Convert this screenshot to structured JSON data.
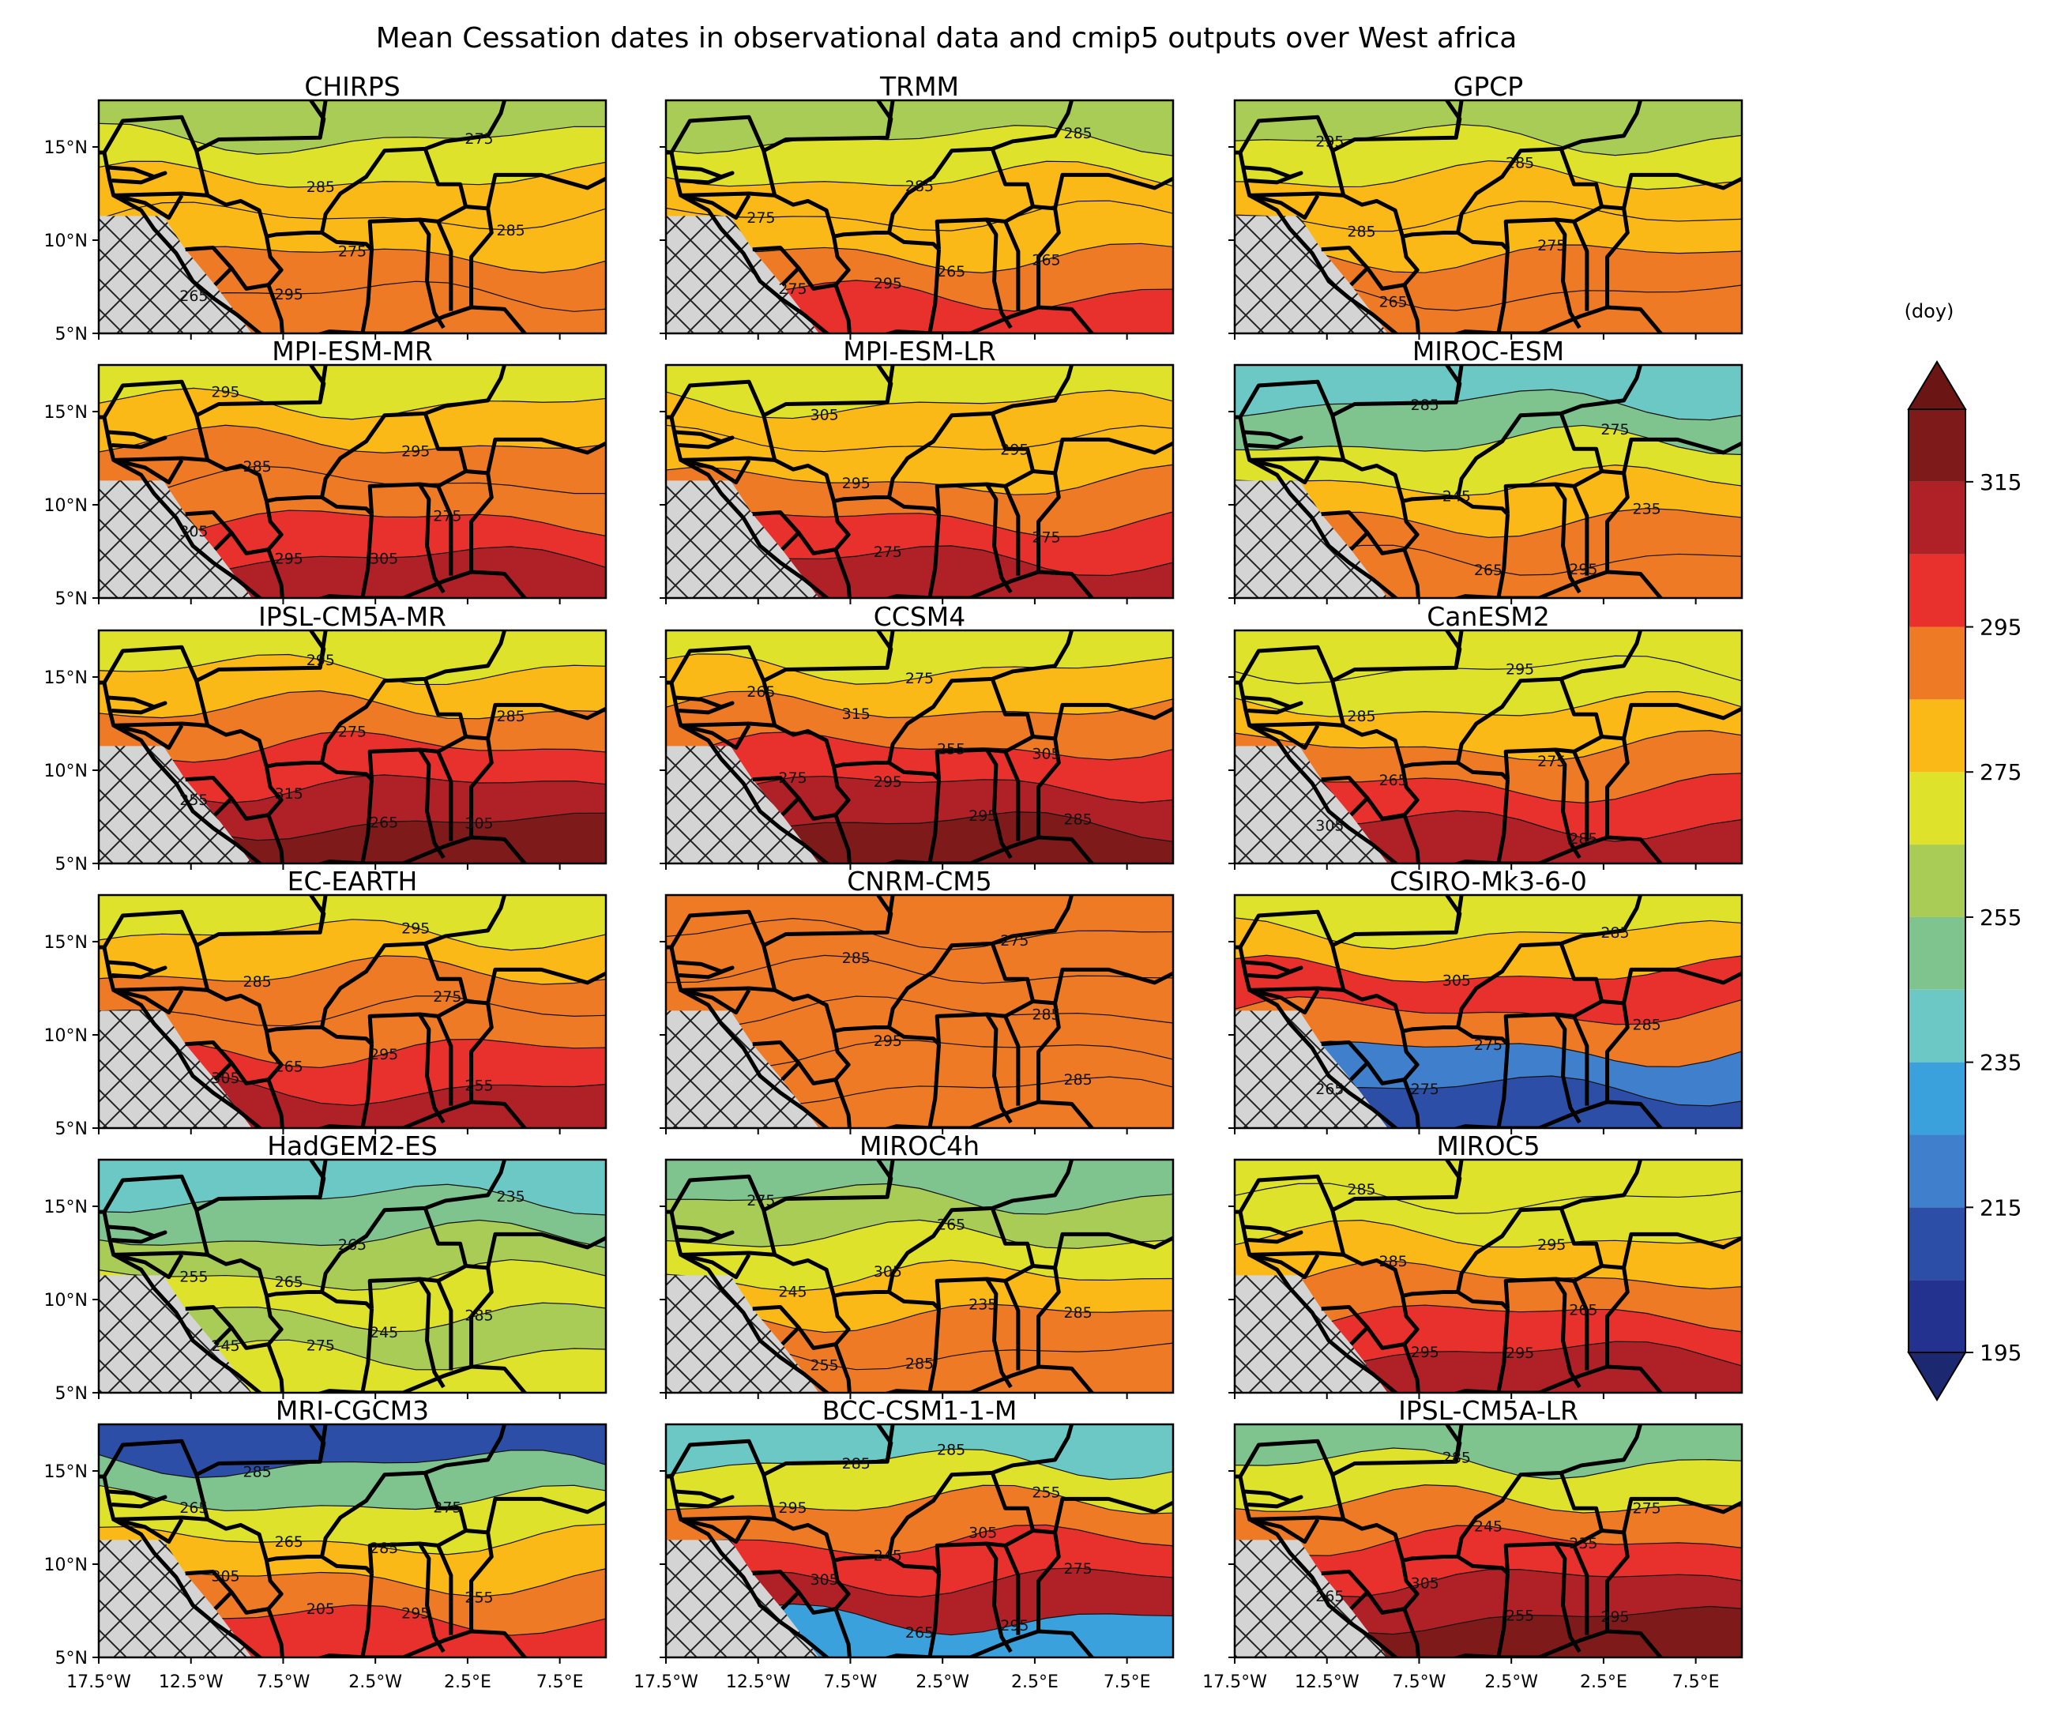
{
  "figure": {
    "title": "Mean Cessation dates in observational data and cmip5 outputs over West africa"
  },
  "panels": [
    {
      "name": "CHIRPS"
    },
    {
      "name": "TRMM"
    },
    {
      "name": "GPCP"
    },
    {
      "name": "MPI-ESM-MR"
    },
    {
      "name": "MPI-ESM-LR"
    },
    {
      "name": "MIROC-ESM"
    },
    {
      "name": "IPSL-CM5A-MR"
    },
    {
      "name": "CCSM4"
    },
    {
      "name": "CanESM2"
    },
    {
      "name": "EC-EARTH"
    },
    {
      "name": "CNRM-CM5"
    },
    {
      "name": "CSIRO-Mk3-6-0"
    },
    {
      "name": "HadGEM2-ES"
    },
    {
      "name": "MIROC4h"
    },
    {
      "name": "MIROC5"
    },
    {
      "name": "MRI-CGCM3"
    },
    {
      "name": "BCC-CSM1-1-M"
    },
    {
      "name": "IPSL-CM5A-LR"
    }
  ],
  "axes": {
    "lat_ticks": [
      "5°N",
      "10°N",
      "15°N"
    ],
    "lat_values": [
      5,
      10,
      15
    ],
    "lon_ticks": [
      "17.5°W",
      "12.5°W",
      "7.5°W",
      "2.5°W",
      "2.5°E",
      "7.5°E"
    ],
    "lon_values": [
      -17.5,
      -12.5,
      -7.5,
      -2.5,
      2.5,
      7.5
    ],
    "lat_range": [
      5,
      17.5
    ],
    "lon_range": [
      -17.5,
      10
    ]
  },
  "colorbar": {
    "unit_label": "(doy)",
    "tick_labels": [
      "195",
      "215",
      "235",
      "255",
      "275",
      "295",
      "315"
    ],
    "tick_values": [
      195,
      215,
      235,
      255,
      275,
      295,
      315
    ],
    "range": [
      195,
      315
    ],
    "step": 10,
    "extend": "both",
    "colors": [
      "#23318f",
      "#2d4ea6",
      "#3f7fcb",
      "#3aa1dc",
      "#6cc8c4",
      "#7fc48f",
      "#a8cc55",
      "#dfe22a",
      "#fbb917",
      "#ef7a25",
      "#e8312c",
      "#b02127",
      "#7f1a1a"
    ],
    "under_color": "#1c2870",
    "over_color": "#6b1515"
  },
  "mask": {
    "color": "#d4d4d4",
    "pattern": "crosshatch"
  },
  "contour_labels": [
    [
      "265",
      "275",
      "285",
      "285",
      "275",
      "295"
    ],
    [
      "275",
      "265",
      "275",
      "285",
      "285",
      "295",
      "265"
    ],
    [
      "265",
      "275",
      "285",
      "285",
      "295"
    ],
    [
      "295",
      "275",
      "285",
      "295",
      "295",
      "305",
      "305"
    ],
    [
      "275",
      "275",
      "295",
      "295",
      "305"
    ],
    [
      "265",
      "235",
      "245",
      "275",
      "285",
      "295"
    ],
    [
      "265",
      "255",
      "275",
      "285",
      "295",
      "305",
      "315"
    ],
    [
      "295",
      "275",
      "255",
      "265",
      "275",
      "285",
      "295",
      "305",
      "315"
    ],
    [
      "285",
      "265",
      "275",
      "285",
      "295",
      "305"
    ],
    [
      "255",
      "265",
      "275",
      "285",
      "295",
      "305",
      "295"
    ],
    [
      "285",
      "295",
      "285",
      "285",
      "275"
    ],
    [
      "265",
      "275",
      "285",
      "305",
      "285",
      "275"
    ],
    [
      "245",
      "245",
      "255",
      "265",
      "235",
      "275",
      "285",
      "265"
    ],
    [
      "255",
      "235",
      "245",
      "265",
      "275",
      "285",
      "285",
      "305"
    ],
    [
      "295",
      "265",
      "285",
      "295",
      "285",
      "295"
    ],
    [
      "205",
      "255",
      "265",
      "275",
      "285",
      "295",
      "305",
      "285",
      "265"
    ],
    [
      "265",
      "275",
      "245",
      "255",
      "285",
      "295",
      "305",
      "305",
      "295",
      "285"
    ],
    [
      "255",
      "265",
      "245",
      "275",
      "285",
      "295",
      "305",
      "235"
    ]
  ]
}
